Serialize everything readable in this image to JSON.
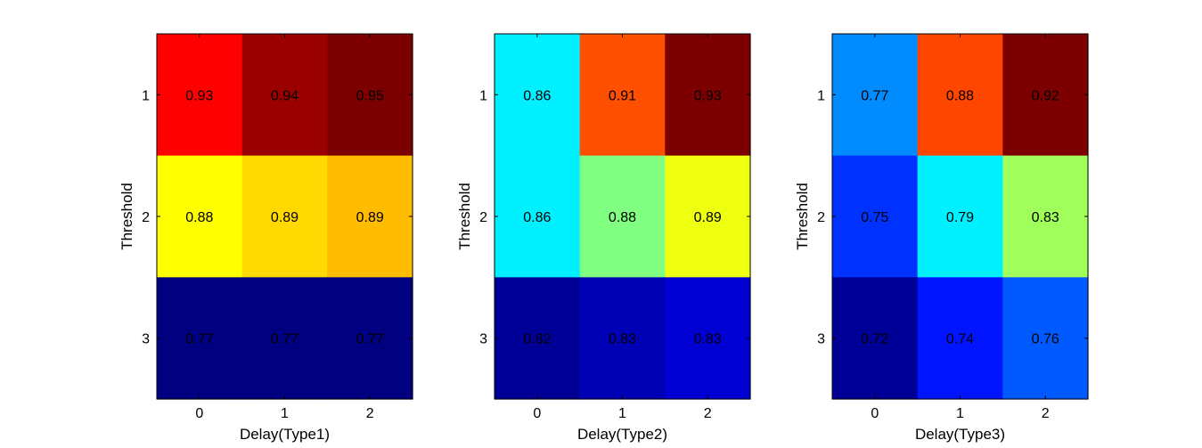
{
  "chart_data": [
    {
      "type": "heatmap",
      "xlabel": "Delay(Type1)",
      "ylabel": "Threshold",
      "x_categories": [
        "0",
        "1",
        "2"
      ],
      "y_categories": [
        "1",
        "2",
        "3"
      ],
      "values": [
        [
          0.93,
          0.94,
          0.95
        ],
        [
          0.88,
          0.89,
          0.89
        ],
        [
          0.77,
          0.77,
          0.77
        ]
      ],
      "value_labels": [
        [
          "0.93",
          "0.94",
          "0.95"
        ],
        [
          "0.88",
          "0.89",
          "0.89"
        ],
        [
          "0.77",
          "0.77",
          "0.77"
        ]
      ],
      "colors": [
        [
          "#ff0000",
          "#9a0000",
          "#7d0000"
        ],
        [
          "#ffff00",
          "#ffd900",
          "#ffbc00"
        ],
        [
          "#000080",
          "#000080",
          "#000080"
        ]
      ]
    },
    {
      "type": "heatmap",
      "xlabel": "Delay(Type2)",
      "ylabel": "Threshold",
      "x_categories": [
        "0",
        "1",
        "2"
      ],
      "y_categories": [
        "1",
        "2",
        "3"
      ],
      "values": [
        [
          0.86,
          0.91,
          0.93
        ],
        [
          0.86,
          0.88,
          0.89
        ],
        [
          0.82,
          0.83,
          0.83
        ]
      ],
      "value_labels": [
        [
          "0.86",
          "0.91",
          "0.93"
        ],
        [
          "0.86",
          "0.88",
          "0.89"
        ],
        [
          "0.82",
          "0.83",
          "0.83"
        ]
      ],
      "colors": [
        [
          "#00f0ff",
          "#ff4f00",
          "#7d0000"
        ],
        [
          "#00f0ff",
          "#80ff80",
          "#eeff10"
        ],
        [
          "#000096",
          "#0000b4",
          "#0000d2"
        ]
      ]
    },
    {
      "type": "heatmap",
      "xlabel": "Delay(Type3)",
      "ylabel": "Threshold",
      "x_categories": [
        "0",
        "1",
        "2"
      ],
      "y_categories": [
        "1",
        "2",
        "3"
      ],
      "values": [
        [
          0.77,
          0.88,
          0.92
        ],
        [
          0.75,
          0.79,
          0.83
        ],
        [
          0.72,
          0.74,
          0.76
        ]
      ],
      "value_labels": [
        [
          "0.77",
          "0.88",
          "0.92"
        ],
        [
          "0.75",
          "0.79",
          "0.83"
        ],
        [
          "0.72",
          "0.74",
          "0.76"
        ]
      ],
      "colors": [
        [
          "#008cff",
          "#ff4600",
          "#7d0000"
        ],
        [
          "#0032ff",
          "#00f0ff",
          "#a0ff5a"
        ],
        [
          "#000096",
          "#0014ff",
          "#005aff"
        ]
      ]
    }
  ]
}
